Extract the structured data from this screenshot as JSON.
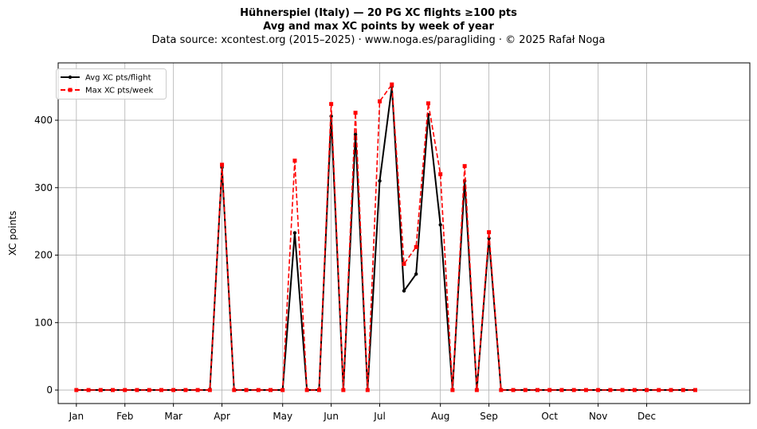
{
  "chart_data": {
    "type": "line",
    "title": "Hühnerspiel (Italy)  —  20 PG XC flights ≥100 pts",
    "subtitle": "Avg and max XC points by week of year",
    "source": "Data source: xcontest.org (2015–2025)  ·  www.noga.es/paragliding  ·  © 2025 Rafał Noga",
    "xlabel": "",
    "ylabel": "XC points",
    "ylim": [
      -20,
      485
    ],
    "yticks": [
      0,
      100,
      200,
      300,
      400
    ],
    "xlim": [
      -1.5,
      55.5
    ],
    "grid": true,
    "legend_position": "top-left",
    "x": [
      0,
      1,
      2,
      3,
      4,
      5,
      6,
      7,
      8,
      9,
      10,
      11,
      12,
      13,
      14,
      15,
      16,
      17,
      18,
      19,
      20,
      21,
      22,
      23,
      24,
      25,
      26,
      27,
      28,
      29,
      30,
      31,
      32,
      33,
      34,
      35,
      36,
      37,
      38,
      39,
      40,
      41,
      42,
      43,
      44,
      45,
      46,
      47,
      48,
      49,
      50,
      51
    ],
    "month_ticks": [
      {
        "label": "Jan",
        "x": 0
      },
      {
        "label": "Feb",
        "x": 4
      },
      {
        "label": "Mar",
        "x": 8
      },
      {
        "label": "Apr",
        "x": 12
      },
      {
        "label": "May",
        "x": 17
      },
      {
        "label": "Jun",
        "x": 21
      },
      {
        "label": "Jul",
        "x": 25
      },
      {
        "label": "Aug",
        "x": 30
      },
      {
        "label": "Sep",
        "x": 34
      },
      {
        "label": "Oct",
        "x": 39
      },
      {
        "label": "Nov",
        "x": 43
      },
      {
        "label": "Dec",
        "x": 47
      }
    ],
    "series": [
      {
        "name": "Avg XC pts/flight",
        "color": "#000000",
        "style": "solid",
        "marker": "circle",
        "values": [
          0,
          0,
          0,
          0,
          0,
          0,
          0,
          0,
          0,
          0,
          0,
          0,
          330,
          0,
          0,
          0,
          0,
          0,
          233,
          0,
          0,
          406,
          0,
          379,
          0,
          310,
          450,
          147,
          172,
          408,
          245,
          0,
          310,
          0,
          225,
          0,
          0,
          0,
          0,
          0,
          0,
          0,
          0,
          0,
          0,
          0,
          0,
          0,
          0,
          0,
          0,
          0
        ]
      },
      {
        "name": "Max XC pts/week",
        "color": "#ff0000",
        "style": "dashed",
        "marker": "square",
        "values": [
          0,
          0,
          0,
          0,
          0,
          0,
          0,
          0,
          0,
          0,
          0,
          0,
          334,
          0,
          0,
          0,
          0,
          0,
          340,
          0,
          0,
          424,
          0,
          411,
          0,
          428,
          453,
          187,
          212,
          425,
          320,
          0,
          332,
          0,
          234,
          0,
          0,
          0,
          0,
          0,
          0,
          0,
          0,
          0,
          0,
          0,
          0,
          0,
          0,
          0,
          0,
          0
        ]
      }
    ]
  }
}
